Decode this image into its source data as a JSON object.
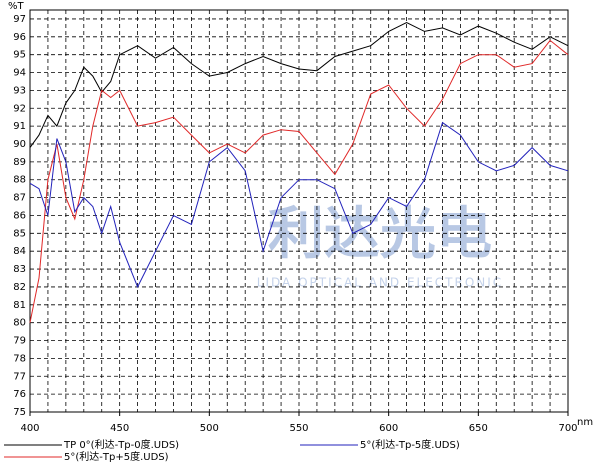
{
  "chart_data": {
    "type": "line",
    "y_label": "%T",
    "x_label": "nm",
    "watermark": {
      "title": "利达光电",
      "subtitle": "LIDA OPTICAL AND ELECTRONIC"
    },
    "x": [
      400,
      405,
      410,
      415,
      420,
      425,
      430,
      435,
      440,
      445,
      450,
      460,
      470,
      480,
      490,
      500,
      510,
      520,
      530,
      540,
      550,
      560,
      570,
      580,
      590,
      600,
      610,
      620,
      630,
      640,
      650,
      660,
      670,
      680,
      690,
      700
    ],
    "series": [
      {
        "name": "TP  0°(利达-Tp-0度.UDS)",
        "color": "#000000",
        "values": [
          89.8,
          90.5,
          91.6,
          91,
          92.3,
          93,
          94.3,
          93.8,
          92.9,
          93.5,
          95,
          95.5,
          94.8,
          95.4,
          94.5,
          93.8,
          94,
          94.5,
          94.9,
          94.5,
          94.2,
          94.1,
          94.9,
          95.2,
          95.5,
          96.3,
          96.8,
          96.3,
          96.5,
          96.1,
          96.6,
          96.2,
          95.7,
          95.3,
          96,
          95.5
        ]
      },
      {
        "name": "5°(利达-Tp+5度.UDS)",
        "color": "#e02828",
        "values": [
          80,
          82.5,
          88,
          90,
          87,
          85.8,
          88,
          91,
          93,
          92.6,
          93,
          91,
          91.2,
          91.5,
          90.5,
          89.5,
          90,
          89.5,
          90.5,
          90.8,
          90.7,
          89.5,
          88.3,
          90,
          92.8,
          93.3,
          92,
          91,
          92.5,
          94.5,
          95,
          95,
          94.3,
          94.5,
          95.8,
          95
        ]
      },
      {
        "name": "5°(利达-Tp-5度.UDS)",
        "color": "#2222bb",
        "values": [
          87.8,
          87.5,
          86,
          90.3,
          89,
          86.2,
          87,
          86.5,
          85,
          86.5,
          84.5,
          82,
          84,
          86,
          85.5,
          89,
          89.8,
          88.5,
          84,
          87,
          88,
          88,
          87.5,
          85,
          85.5,
          87,
          86.5,
          88,
          91.2,
          90.5,
          89,
          88.5,
          88.8,
          89.8,
          88.8,
          88.5
        ]
      }
    ],
    "xlim": [
      400,
      700
    ],
    "ylim": [
      75,
      97.5
    ],
    "xticks": [
      400,
      450,
      500,
      550,
      600,
      650,
      700
    ],
    "x_grid": [
      410,
      420,
      430,
      440,
      450,
      460,
      470,
      480,
      490,
      500,
      510,
      520,
      530,
      540,
      550,
      560,
      570,
      580,
      590,
      600,
      610,
      620,
      630,
      640,
      650,
      660,
      670,
      680,
      690
    ],
    "yticks": [
      75,
      76,
      77,
      78,
      79,
      80,
      81,
      82,
      83,
      84,
      85,
      86,
      87,
      88,
      89,
      90,
      91,
      92,
      93,
      94,
      95,
      96,
      97
    ],
    "grid": true
  }
}
